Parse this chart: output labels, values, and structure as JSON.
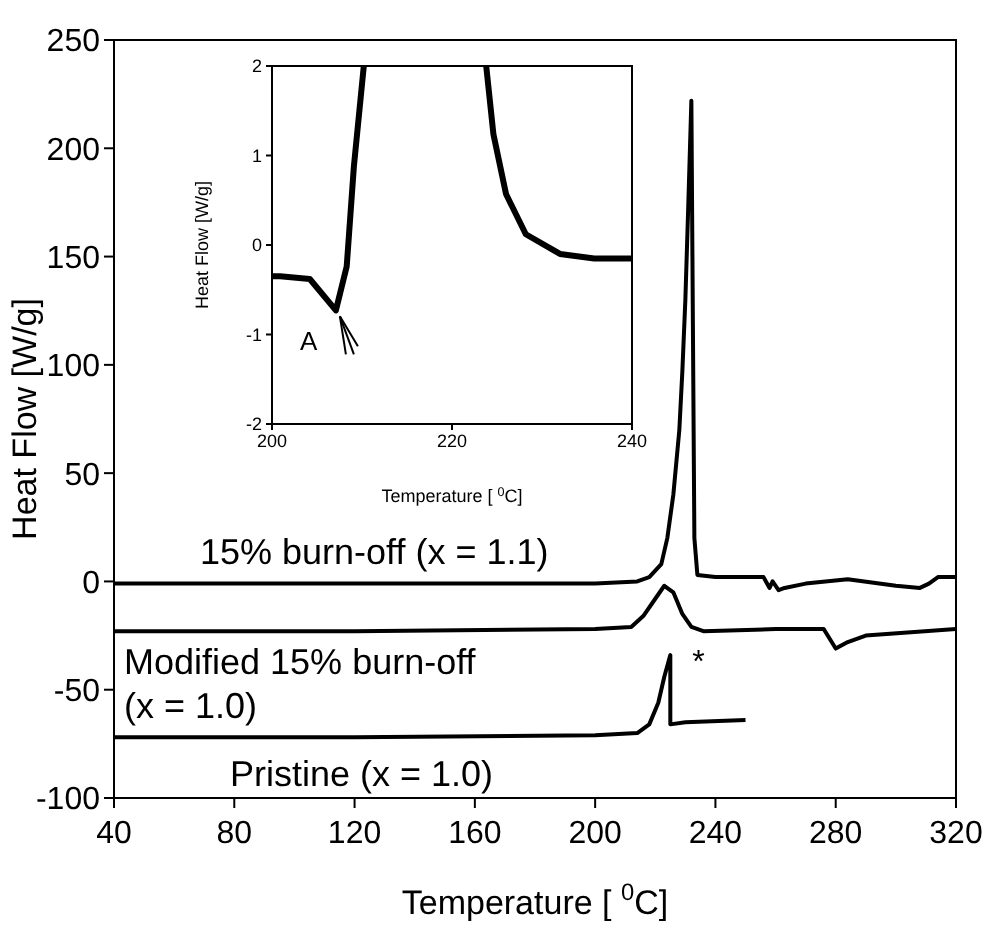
{
  "chart_data": [
    {
      "type": "line",
      "xlabel": "Temperature [ $^{0}$C]",
      "ylabel": "Heat Flow [W/g]",
      "xlim": [
        40,
        320
      ],
      "xticks": [
        40,
        80,
        120,
        160,
        200,
        240,
        280,
        320
      ],
      "ylim": [
        -100,
        250
      ],
      "yticks": [
        -100,
        -50,
        0,
        50,
        100,
        150,
        200,
        250
      ],
      "legend": false,
      "grid": false,
      "marker": "none",
      "line_style": "solid",
      "series": [
        {
          "name": "15% burn-off (x = 1.1)",
          "color": "#000000",
          "x": [
            40,
            120,
            200,
            214,
            218,
            222,
            224,
            226,
            228,
            229,
            230,
            231,
            232,
            232.5,
            233,
            234,
            240,
            256,
            258,
            259,
            261,
            263,
            270,
            284,
            300,
            308,
            311,
            314,
            320
          ],
          "values": [
            -1,
            -1,
            -1,
            0,
            2,
            8,
            20,
            40,
            70,
            97,
            130,
            175,
            222,
            120,
            20,
            3,
            2,
            2,
            -3,
            0,
            -4,
            -3,
            -1,
            1,
            -2,
            -3,
            -1,
            2,
            2
          ]
        },
        {
          "name": "Modified 15% burn-off\n(x = 1.0)",
          "color": "#000000",
          "x": [
            40,
            120,
            200,
            212,
            216,
            220,
            223,
            226,
            229,
            232,
            236,
            260,
            276,
            280,
            284,
            290,
            320
          ],
          "values": [
            -23,
            -23,
            -22,
            -21,
            -16,
            -8,
            -2,
            -5,
            -15,
            -21,
            -23,
            -22,
            -22,
            -31,
            -28,
            -25,
            -22
          ]
        },
        {
          "name": "Pristine (x = 1.0)",
          "color": "#000000",
          "x": [
            40,
            120,
            200,
            214,
            218,
            221,
            223,
            225,
            225,
            230,
            250
          ],
          "values": [
            -72,
            -72,
            -71,
            -70,
            -66,
            -56,
            -44,
            -34,
            -66,
            -65,
            -64
          ]
        }
      ],
      "annotations": [
        {
          "text": "*",
          "x": 227,
          "y": -38
        }
      ]
    },
    {
      "type": "line",
      "xlabel": "Temperature [ $^{0}$C]",
      "ylabel": "Heat Flow [W/g]",
      "xlim": [
        200,
        240
      ],
      "xticks": [
        200,
        220,
        240
      ],
      "ylim": [
        -2,
        2
      ],
      "yticks": [
        -2,
        -1,
        0,
        1,
        2
      ],
      "legend": false,
      "grid": false,
      "marker": "none",
      "line_style": "solid",
      "series": [
        {
          "color": "#000000",
          "x": [
            200,
            200.9,
            204.2,
            207.1,
            208.3,
            209.1,
            210.2,
            217,
            223.8,
            224.6,
            226,
            228.2,
            232,
            235.8,
            240
          ],
          "values": [
            -0.35,
            -0.35,
            -0.38,
            -0.73,
            -0.24,
            0.88,
            2,
            null,
            2,
            1.24,
            0.57,
            0.12,
            -0.1,
            -0.15,
            -0.15
          ]
        }
      ],
      "annotations": [
        {
          "text": "A",
          "x": 207.1,
          "y": -0.73
        }
      ]
    }
  ]
}
